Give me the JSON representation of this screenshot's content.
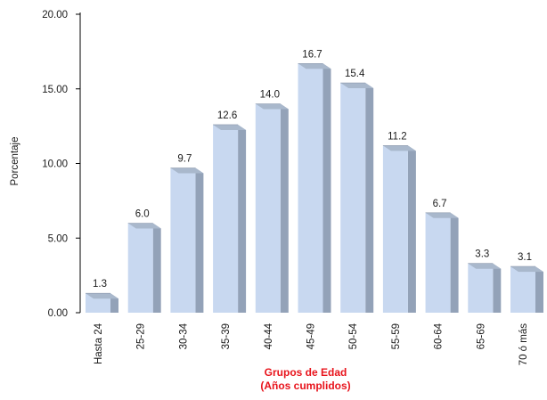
{
  "chart_data": {
    "type": "bar",
    "categories": [
      "Hasta 24",
      "25-29",
      "30-34",
      "35-39",
      "40-44",
      "45-49",
      "50-54",
      "55-59",
      "60-64",
      "65-69",
      "70 ó más"
    ],
    "values": [
      1.3,
      6.0,
      9.7,
      12.6,
      14.0,
      16.7,
      15.4,
      11.2,
      6.7,
      3.3,
      3.1
    ],
    "value_labels": [
      "1.3",
      "6.0",
      "9.7",
      "12.6",
      "14.0",
      "16.7",
      "15.4",
      "11.2",
      "6.7",
      "3.3",
      "3.1"
    ],
    "ylabel": "Porcentaje",
    "xlabel_lines": [
      "Grupos de Edad",
      "(Años cumplidos)"
    ],
    "ylim": [
      0,
      20
    ],
    "yticks": [
      0,
      5,
      10,
      15,
      20
    ],
    "ytick_labels": [
      "0.00",
      "5.00",
      "10.00",
      "15.00",
      "20.00"
    ],
    "grid": false,
    "bar_style": "3d",
    "colors": {
      "bar_front": "#c8d8f0",
      "bar_top": "#a9b8cc",
      "bar_side": "#93a2b8",
      "axis": "#000000",
      "xlabel": "#e8141c"
    }
  }
}
